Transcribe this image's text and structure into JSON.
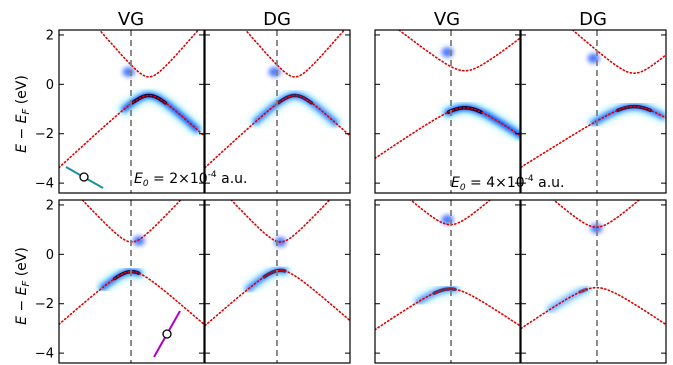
{
  "chart_data": {
    "type": "heatmap",
    "description_free": true,
    "ylabel_parts": {
      "main": "E − E",
      "sub": "F",
      "unit": " (eV)"
    },
    "ylim": [
      -4.4,
      2.2
    ],
    "yticks": [
      "2",
      "0",
      "−2",
      "−4"
    ],
    "ytick_values": [
      2,
      0,
      -2,
      -4
    ],
    "column_titles": [
      "VG",
      "DG",
      "VG",
      "DG"
    ],
    "annotations": [
      {
        "prefix": "E",
        "sub": "0",
        "text": " = 2×10",
        "sup": "-4",
        "suffix": " a.u."
      },
      {
        "prefix": "E",
        "sub": "0",
        "text": " = 4×10",
        "sup": "-4",
        "suffix": " a.u."
      }
    ],
    "colors": {
      "band": "#e00000",
      "vline": "#808080",
      "spectral": "#0040ff",
      "hot": "#100030",
      "glow": "#3fe0ff",
      "polarizer_top": "#1a8fa0",
      "polarizer_bottom": "#b000c8"
    }
  }
}
